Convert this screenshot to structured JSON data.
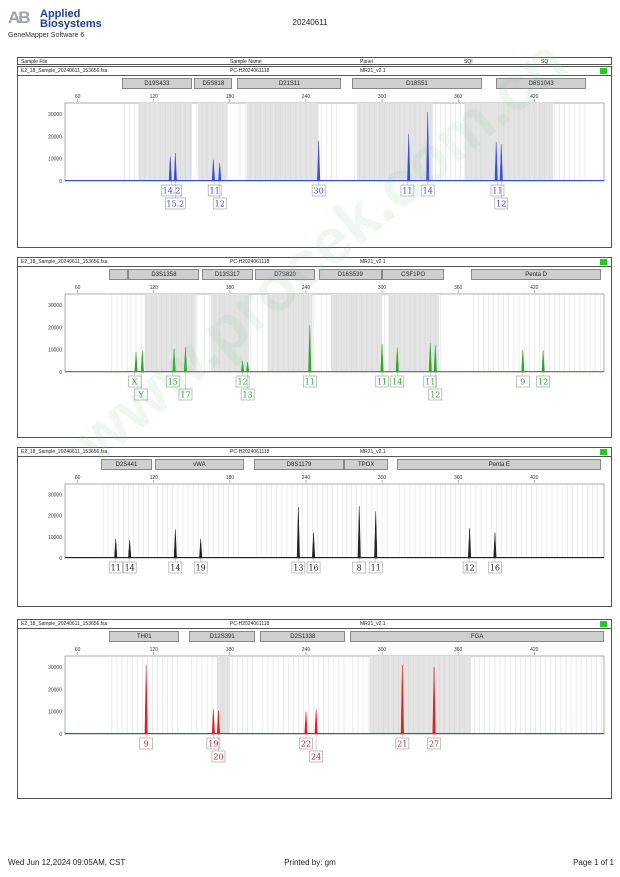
{
  "header": {
    "logo_mark": "AB",
    "company_line1": "Applied",
    "company_line2": "Biosystems",
    "software": "GeneMapper Software 6",
    "date": "20240611"
  },
  "columns": {
    "sample_file": "Sample File",
    "sample_name": "Sample Name",
    "panel": "Panel",
    "sqi": "SQI",
    "sq": "SQ"
  },
  "watermark": "www.procek.com.cn",
  "panels": [
    {
      "sample_file": "E2_18_Sample_20240611_153656.fsa",
      "sample_name": "PC-H2024061118",
      "panel_name": "MR21_v2.1",
      "color": "#3a4ed6",
      "loci": [
        {
          "name": "D19S433",
          "start": 95,
          "end": 150
        },
        {
          "name": "D5S818",
          "start": 152,
          "end": 182
        },
        {
          "name": "D21S11",
          "start": 186,
          "end": 268
        },
        {
          "name": "D18S51",
          "start": 276,
          "end": 379
        },
        {
          "name": "D6S1043",
          "start": 390,
          "end": 461
        }
      ],
      "shaded": [
        [
          108,
          150
        ],
        [
          155,
          178
        ],
        [
          193,
          250
        ],
        [
          280,
          340
        ],
        [
          365,
          435
        ]
      ],
      "peaks": [
        {
          "x": 133,
          "h": 11000
        },
        {
          "x": 137,
          "h": 12500
        },
        {
          "x": 167,
          "h": 9500
        },
        {
          "x": 172,
          "h": 8000
        },
        {
          "x": 250,
          "h": 18000
        },
        {
          "x": 321,
          "h": 21000
        },
        {
          "x": 336,
          "h": 31000
        },
        {
          "x": 390,
          "h": 17500
        },
        {
          "x": 394,
          "h": 16500
        }
      ],
      "labels_row1": [
        {
          "x": 134,
          "t": "14.2"
        },
        {
          "x": 168,
          "t": "11"
        },
        {
          "x": 250,
          "t": "30"
        },
        {
          "x": 320,
          "t": "11"
        },
        {
          "x": 336,
          "t": "14"
        },
        {
          "x": 391,
          "t": "11"
        }
      ],
      "labels_row2": [
        {
          "x": 137,
          "t": "15.2"
        },
        {
          "x": 172,
          "t": "12"
        },
        {
          "x": 394,
          "t": "12"
        }
      ]
    },
    {
      "sample_file": "E2_18_Sample_20240611_153656.fsa",
      "sample_name": "PC-H2024061118",
      "panel_name": "MR21_v2.1",
      "color": "#2aaa2a",
      "loci": [
        {
          "name": "",
          "start": 85,
          "end": 100
        },
        {
          "name": "D3S1358",
          "start": 100,
          "end": 156
        },
        {
          "name": "D13S317",
          "start": 158,
          "end": 198
        },
        {
          "name": "D7S820",
          "start": 200,
          "end": 247
        },
        {
          "name": "D16S539",
          "start": 250,
          "end": 300
        },
        {
          "name": "CSF1PO",
          "start": 300,
          "end": 349
        },
        {
          "name": "Penta D",
          "start": 370,
          "end": 473
        }
      ],
      "shaded": [
        [
          113,
          153
        ],
        [
          165,
          195
        ],
        [
          210,
          245
        ],
        [
          260,
          300
        ],
        [
          305,
          345
        ]
      ],
      "peaks": [
        {
          "x": 106,
          "h": 9000
        },
        {
          "x": 111,
          "h": 9500
        },
        {
          "x": 136,
          "h": 10500
        },
        {
          "x": 145,
          "h": 11000
        },
        {
          "x": 190,
          "h": 5000
        },
        {
          "x": 194,
          "h": 4500
        },
        {
          "x": 243,
          "h": 21000
        },
        {
          "x": 300,
          "h": 12500
        },
        {
          "x": 312,
          "h": 11000
        },
        {
          "x": 338,
          "h": 13000
        },
        {
          "x": 342,
          "h": 12000
        },
        {
          "x": 411,
          "h": 10000
        },
        {
          "x": 427,
          "h": 9800
        }
      ],
      "labels_row1": [
        {
          "x": 105,
          "t": "X"
        },
        {
          "x": 135,
          "t": "15"
        },
        {
          "x": 190,
          "t": "12"
        },
        {
          "x": 243,
          "t": "11"
        },
        {
          "x": 300,
          "t": "11"
        },
        {
          "x": 312,
          "t": "14"
        },
        {
          "x": 338,
          "t": "11"
        },
        {
          "x": 411,
          "t": "9"
        },
        {
          "x": 427,
          "t": "12"
        }
      ],
      "labels_row2": [
        {
          "x": 110,
          "t": "Y"
        },
        {
          "x": 145,
          "t": "17"
        },
        {
          "x": 194,
          "t": "13"
        },
        {
          "x": 342,
          "t": "12"
        }
      ]
    },
    {
      "sample_file": "E2_18_Sample_20240611_153656.fsa",
      "sample_name": "PC-H2024061118",
      "panel_name": "MR21_v2.1",
      "color": "#222222",
      "loci": [
        {
          "name": "D2S441",
          "start": 78,
          "end": 119
        },
        {
          "name": "vWA",
          "start": 121,
          "end": 191
        },
        {
          "name": "D8S1179",
          "start": 199,
          "end": 270
        },
        {
          "name": "TPOX",
          "start": 270,
          "end": 305
        },
        {
          "name": "Penta E",
          "start": 312,
          "end": 473
        }
      ],
      "shaded": [],
      "peaks": [
        {
          "x": 90,
          "h": 9000
        },
        {
          "x": 101,
          "h": 8500
        },
        {
          "x": 137,
          "h": 13500
        },
        {
          "x": 157,
          "h": 9000
        },
        {
          "x": 234,
          "h": 24000
        },
        {
          "x": 246,
          "h": 12000
        },
        {
          "x": 282,
          "h": 24500
        },
        {
          "x": 295,
          "h": 22000
        },
        {
          "x": 369,
          "h": 14000
        },
        {
          "x": 389,
          "h": 12000
        }
      ],
      "labels_row1": [
        {
          "x": 90,
          "t": "11"
        },
        {
          "x": 101,
          "t": "14"
        },
        {
          "x": 137,
          "t": "14"
        },
        {
          "x": 157,
          "t": "19"
        },
        {
          "x": 234,
          "t": "13"
        },
        {
          "x": 246,
          "t": "16"
        },
        {
          "x": 282,
          "t": "8"
        },
        {
          "x": 295,
          "t": "11"
        },
        {
          "x": 369,
          "t": "12"
        },
        {
          "x": 389,
          "t": "16"
        }
      ],
      "labels_row2": []
    },
    {
      "sample_file": "E2_18_Sample_20240611_153656.fsa",
      "sample_name": "PC-H2024061118",
      "panel_name": "MR21_v2.1",
      "color": "#e02020",
      "loci": [
        {
          "name": "TH01",
          "start": 85,
          "end": 140
        },
        {
          "name": "D12S391",
          "start": 148,
          "end": 200
        },
        {
          "name": "D2S1338",
          "start": 204,
          "end": 271
        },
        {
          "name": "FGA",
          "start": 275,
          "end": 475
        }
      ],
      "shaded": [
        [
          170,
          180
        ],
        [
          290,
          370
        ]
      ],
      "peaks": [
        {
          "x": 114,
          "h": 31000
        },
        {
          "x": 167,
          "h": 11000
        },
        {
          "x": 171,
          "h": 10500
        },
        {
          "x": 240,
          "h": 10000
        },
        {
          "x": 248,
          "h": 11000
        },
        {
          "x": 316,
          "h": 31000
        },
        {
          "x": 341,
          "h": 30000
        }
      ],
      "labels_row1": [
        {
          "x": 114,
          "t": "9"
        },
        {
          "x": 167,
          "t": "19"
        },
        {
          "x": 240,
          "t": "22"
        },
        {
          "x": 316,
          "t": "21"
        },
        {
          "x": 341,
          "t": "27"
        }
      ],
      "labels_row2": [
        {
          "x": 171,
          "t": "20"
        },
        {
          "x": 248,
          "t": "24"
        }
      ]
    }
  ],
  "chart_data": {
    "type": "line",
    "x_axis_ticks": [
      60,
      120,
      180,
      240,
      300,
      360,
      420
    ],
    "y_axis_ticks": [
      0,
      10000,
      20000,
      30000
    ],
    "xlim": [
      50,
      475
    ],
    "ylim": [
      0,
      35000
    ]
  },
  "footer": {
    "left": "Wed Jun 12,2024 09:05AM, CST",
    "center": "Printed by: gm",
    "right": "Page 1 of 1"
  }
}
